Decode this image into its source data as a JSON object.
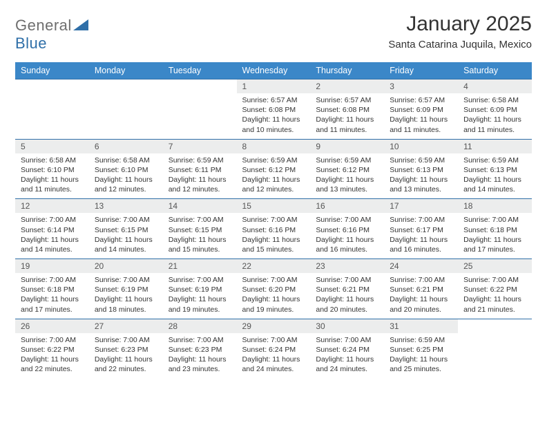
{
  "logo": {
    "part1": "General",
    "part2": "Blue"
  },
  "title": "January 2025",
  "location": "Santa Catarina Juquila, Mexico",
  "colors": {
    "header_bg": "#3b87c8",
    "header_text": "#ffffff",
    "rule": "#2f6fa8",
    "daynum_bg": "#eceded",
    "text": "#333333",
    "background": "#ffffff"
  },
  "weekdays": [
    "Sunday",
    "Monday",
    "Tuesday",
    "Wednesday",
    "Thursday",
    "Friday",
    "Saturday"
  ],
  "weeks": [
    [
      null,
      null,
      null,
      {
        "n": "1",
        "sr": "6:57 AM",
        "ss": "6:08 PM",
        "dl": "11 hours and 10 minutes."
      },
      {
        "n": "2",
        "sr": "6:57 AM",
        "ss": "6:08 PM",
        "dl": "11 hours and 11 minutes."
      },
      {
        "n": "3",
        "sr": "6:57 AM",
        "ss": "6:09 PM",
        "dl": "11 hours and 11 minutes."
      },
      {
        "n": "4",
        "sr": "6:58 AM",
        "ss": "6:09 PM",
        "dl": "11 hours and 11 minutes."
      }
    ],
    [
      {
        "n": "5",
        "sr": "6:58 AM",
        "ss": "6:10 PM",
        "dl": "11 hours and 11 minutes."
      },
      {
        "n": "6",
        "sr": "6:58 AM",
        "ss": "6:10 PM",
        "dl": "11 hours and 12 minutes."
      },
      {
        "n": "7",
        "sr": "6:59 AM",
        "ss": "6:11 PM",
        "dl": "11 hours and 12 minutes."
      },
      {
        "n": "8",
        "sr": "6:59 AM",
        "ss": "6:12 PM",
        "dl": "11 hours and 12 minutes."
      },
      {
        "n": "9",
        "sr": "6:59 AM",
        "ss": "6:12 PM",
        "dl": "11 hours and 13 minutes."
      },
      {
        "n": "10",
        "sr": "6:59 AM",
        "ss": "6:13 PM",
        "dl": "11 hours and 13 minutes."
      },
      {
        "n": "11",
        "sr": "6:59 AM",
        "ss": "6:13 PM",
        "dl": "11 hours and 14 minutes."
      }
    ],
    [
      {
        "n": "12",
        "sr": "7:00 AM",
        "ss": "6:14 PM",
        "dl": "11 hours and 14 minutes."
      },
      {
        "n": "13",
        "sr": "7:00 AM",
        "ss": "6:15 PM",
        "dl": "11 hours and 14 minutes."
      },
      {
        "n": "14",
        "sr": "7:00 AM",
        "ss": "6:15 PM",
        "dl": "11 hours and 15 minutes."
      },
      {
        "n": "15",
        "sr": "7:00 AM",
        "ss": "6:16 PM",
        "dl": "11 hours and 15 minutes."
      },
      {
        "n": "16",
        "sr": "7:00 AM",
        "ss": "6:16 PM",
        "dl": "11 hours and 16 minutes."
      },
      {
        "n": "17",
        "sr": "7:00 AM",
        "ss": "6:17 PM",
        "dl": "11 hours and 16 minutes."
      },
      {
        "n": "18",
        "sr": "7:00 AM",
        "ss": "6:18 PM",
        "dl": "11 hours and 17 minutes."
      }
    ],
    [
      {
        "n": "19",
        "sr": "7:00 AM",
        "ss": "6:18 PM",
        "dl": "11 hours and 17 minutes."
      },
      {
        "n": "20",
        "sr": "7:00 AM",
        "ss": "6:19 PM",
        "dl": "11 hours and 18 minutes."
      },
      {
        "n": "21",
        "sr": "7:00 AM",
        "ss": "6:19 PM",
        "dl": "11 hours and 19 minutes."
      },
      {
        "n": "22",
        "sr": "7:00 AM",
        "ss": "6:20 PM",
        "dl": "11 hours and 19 minutes."
      },
      {
        "n": "23",
        "sr": "7:00 AM",
        "ss": "6:21 PM",
        "dl": "11 hours and 20 minutes."
      },
      {
        "n": "24",
        "sr": "7:00 AM",
        "ss": "6:21 PM",
        "dl": "11 hours and 20 minutes."
      },
      {
        "n": "25",
        "sr": "7:00 AM",
        "ss": "6:22 PM",
        "dl": "11 hours and 21 minutes."
      }
    ],
    [
      {
        "n": "26",
        "sr": "7:00 AM",
        "ss": "6:22 PM",
        "dl": "11 hours and 22 minutes."
      },
      {
        "n": "27",
        "sr": "7:00 AM",
        "ss": "6:23 PM",
        "dl": "11 hours and 22 minutes."
      },
      {
        "n": "28",
        "sr": "7:00 AM",
        "ss": "6:23 PM",
        "dl": "11 hours and 23 minutes."
      },
      {
        "n": "29",
        "sr": "7:00 AM",
        "ss": "6:24 PM",
        "dl": "11 hours and 24 minutes."
      },
      {
        "n": "30",
        "sr": "7:00 AM",
        "ss": "6:24 PM",
        "dl": "11 hours and 24 minutes."
      },
      {
        "n": "31",
        "sr": "6:59 AM",
        "ss": "6:25 PM",
        "dl": "11 hours and 25 minutes."
      },
      null
    ]
  ],
  "labels": {
    "sunrise": "Sunrise:",
    "sunset": "Sunset:",
    "daylight": "Daylight:"
  }
}
